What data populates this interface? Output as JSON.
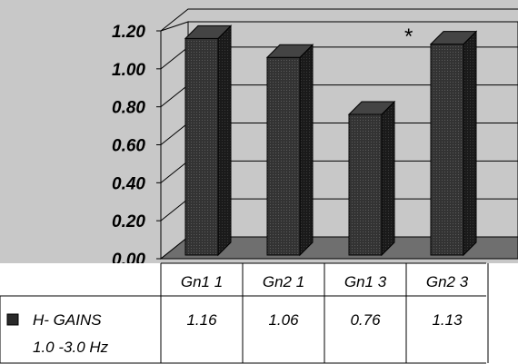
{
  "chart_data": {
    "type": "bar",
    "categories": [
      "Gn1 1",
      "Gn2 1",
      "Gn1 3",
      "Gn2 3"
    ],
    "series": [
      {
        "name": "H- GAINS",
        "name_line2": "1.0 -3.0 Hz",
        "values": [
          1.16,
          1.06,
          0.76,
          1.13
        ],
        "labels": [
          "1.16",
          "1.06",
          "0.76",
          "1.13"
        ]
      }
    ],
    "y_ticks": [
      "0.00",
      "0.20",
      "0.40",
      "0.60",
      "0.80",
      "1.00",
      "1.20"
    ],
    "ylim": [
      0,
      1.2
    ],
    "grid": true,
    "legend": "data-table",
    "annotation": "*",
    "colors": {
      "bar": "#2a2a2a",
      "wall": "#c8c8c8",
      "floor": "#6f6f6f",
      "grid": "#000000"
    }
  }
}
